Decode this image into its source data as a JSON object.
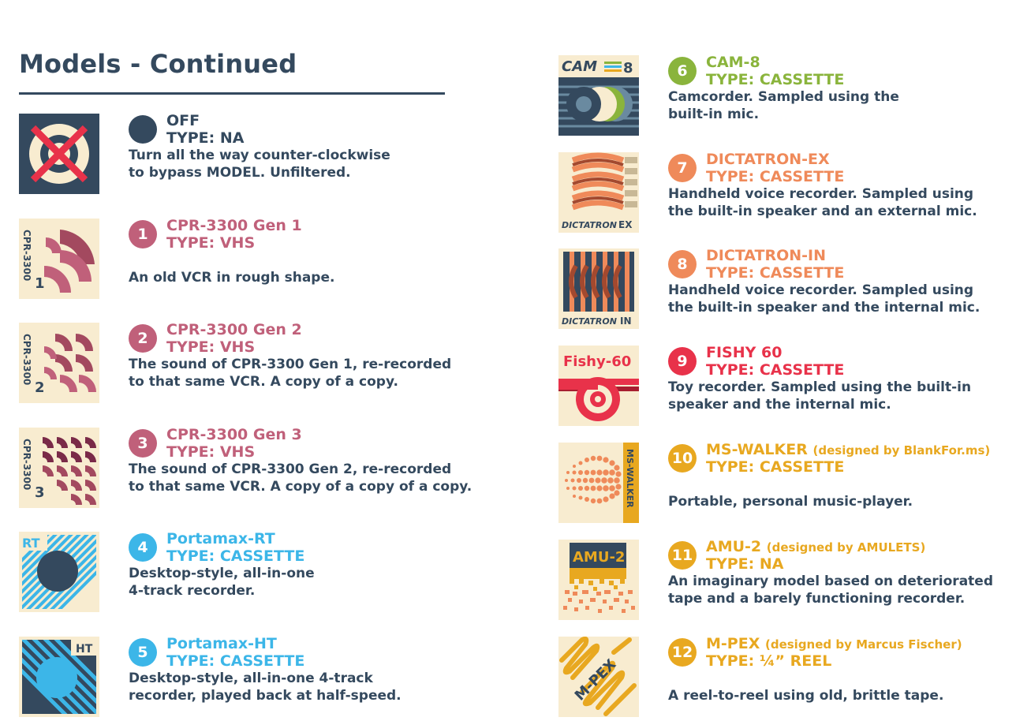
{
  "page": {
    "title": "Models - Continued"
  },
  "models": [
    {
      "badge": "",
      "name": "OFF",
      "type": "TYPE: NA",
      "desc": [
        "Turn all the way counter-clockwise",
        "to bypass MODEL. Unfiltered."
      ],
      "color": "#34495e",
      "thumb_label": ""
    },
    {
      "badge": "1",
      "name": "CPR-3300 Gen 1",
      "type": "TYPE: VHS",
      "desc": [
        "An old VCR in rough shape."
      ],
      "color": "#c0607a",
      "thumb_label": "CPR-3300",
      "thumb_num": "1"
    },
    {
      "badge": "2",
      "name": "CPR-3300 Gen 2",
      "type": "TYPE: VHS",
      "desc": [
        "The sound of CPR-3300 Gen 1, re-recorded",
        "to that same VCR. A copy of a copy."
      ],
      "color": "#c0607a",
      "thumb_label": "CPR-3300",
      "thumb_num": "2"
    },
    {
      "badge": "3",
      "name": "CPR-3300 Gen 3",
      "type": "TYPE: VHS",
      "desc": [
        "The sound of CPR-3300 Gen 2, re-recorded",
        "to that same VCR. A copy of a copy of a copy."
      ],
      "color": "#c0607a",
      "thumb_label": "CPR-3300",
      "thumb_num": "3"
    },
    {
      "badge": "4",
      "name": "Portamax-RT",
      "type": "TYPE: CASSETTE",
      "desc": [
        "Desktop-style, all-in-one",
        "4-track recorder."
      ],
      "color": "#3cb6e8",
      "thumb_label": "RT"
    },
    {
      "badge": "5",
      "name": "Portamax-HT",
      "type": "TYPE: CASSETTE",
      "desc": [
        "Desktop-style, all-in-one 4-track",
        "recorder, played back at half-speed."
      ],
      "color": "#3cb6e8",
      "thumb_label": "HT"
    },
    {
      "badge": "6",
      "name": "CAM-8",
      "type": "TYPE: CASSETTE",
      "desc": [
        "Camcorder. Sampled using the",
        "built-in mic."
      ],
      "color": "#8ab43c",
      "thumb_label": "CAM",
      "thumb_num": "8"
    },
    {
      "badge": "7",
      "name": "DICTATRON-EX",
      "type": "TYPE: CASSETTE",
      "desc": [
        "Handheld voice recorder. Sampled using",
        "the built-in speaker and an external mic."
      ],
      "color": "#ef8a5a",
      "thumb_label": "DICTATRON",
      "thumb_num": "EX"
    },
    {
      "badge": "8",
      "name": "DICTATRON-IN",
      "type": "TYPE: CASSETTE",
      "desc": [
        "Handheld voice recorder. Sampled using",
        "the built-in speaker and the internal mic."
      ],
      "color": "#ef8a5a",
      "thumb_label": "DICTATRON",
      "thumb_num": "IN"
    },
    {
      "badge": "9",
      "name": "FISHY 60",
      "type": "TYPE: CASSETTE",
      "desc": [
        "Toy recorder. Sampled using the built-in",
        "speaker and the internal mic."
      ],
      "color": "#e8324a",
      "thumb_label": "Fishy-60"
    },
    {
      "badge": "10",
      "name": "MS-WALKER",
      "credit": "(designed by BlankFor.ms)",
      "type": "TYPE: CASSETTE",
      "desc": [
        "Portable, personal music-player."
      ],
      "color": "#e8a820",
      "thumb_label": "MS-WALKER"
    },
    {
      "badge": "11",
      "name": "AMU-2",
      "credit": "(designed by AMULETS)",
      "type": "TYPE: NA",
      "desc": [
        "An imaginary model based on deteriorated",
        "tape and a barely functioning recorder."
      ],
      "color": "#e8a820",
      "thumb_label": "AMU-2"
    },
    {
      "badge": "12",
      "name": "M-PEX",
      "credit": "(designed by Marcus Fischer)",
      "type": "TYPE:  ¼” REEL",
      "desc": [
        "A reel-to-reel using old, brittle tape."
      ],
      "color": "#e8a820",
      "thumb_label": "M-PEX"
    }
  ],
  "colors": {
    "navy": "#34495e",
    "cream": "#f8ecd0",
    "pink": "#c0607a",
    "blue": "#3cb6e8",
    "green": "#8ab43c",
    "orange": "#ef8a5a",
    "red": "#e8324a",
    "gold": "#e8a820"
  }
}
